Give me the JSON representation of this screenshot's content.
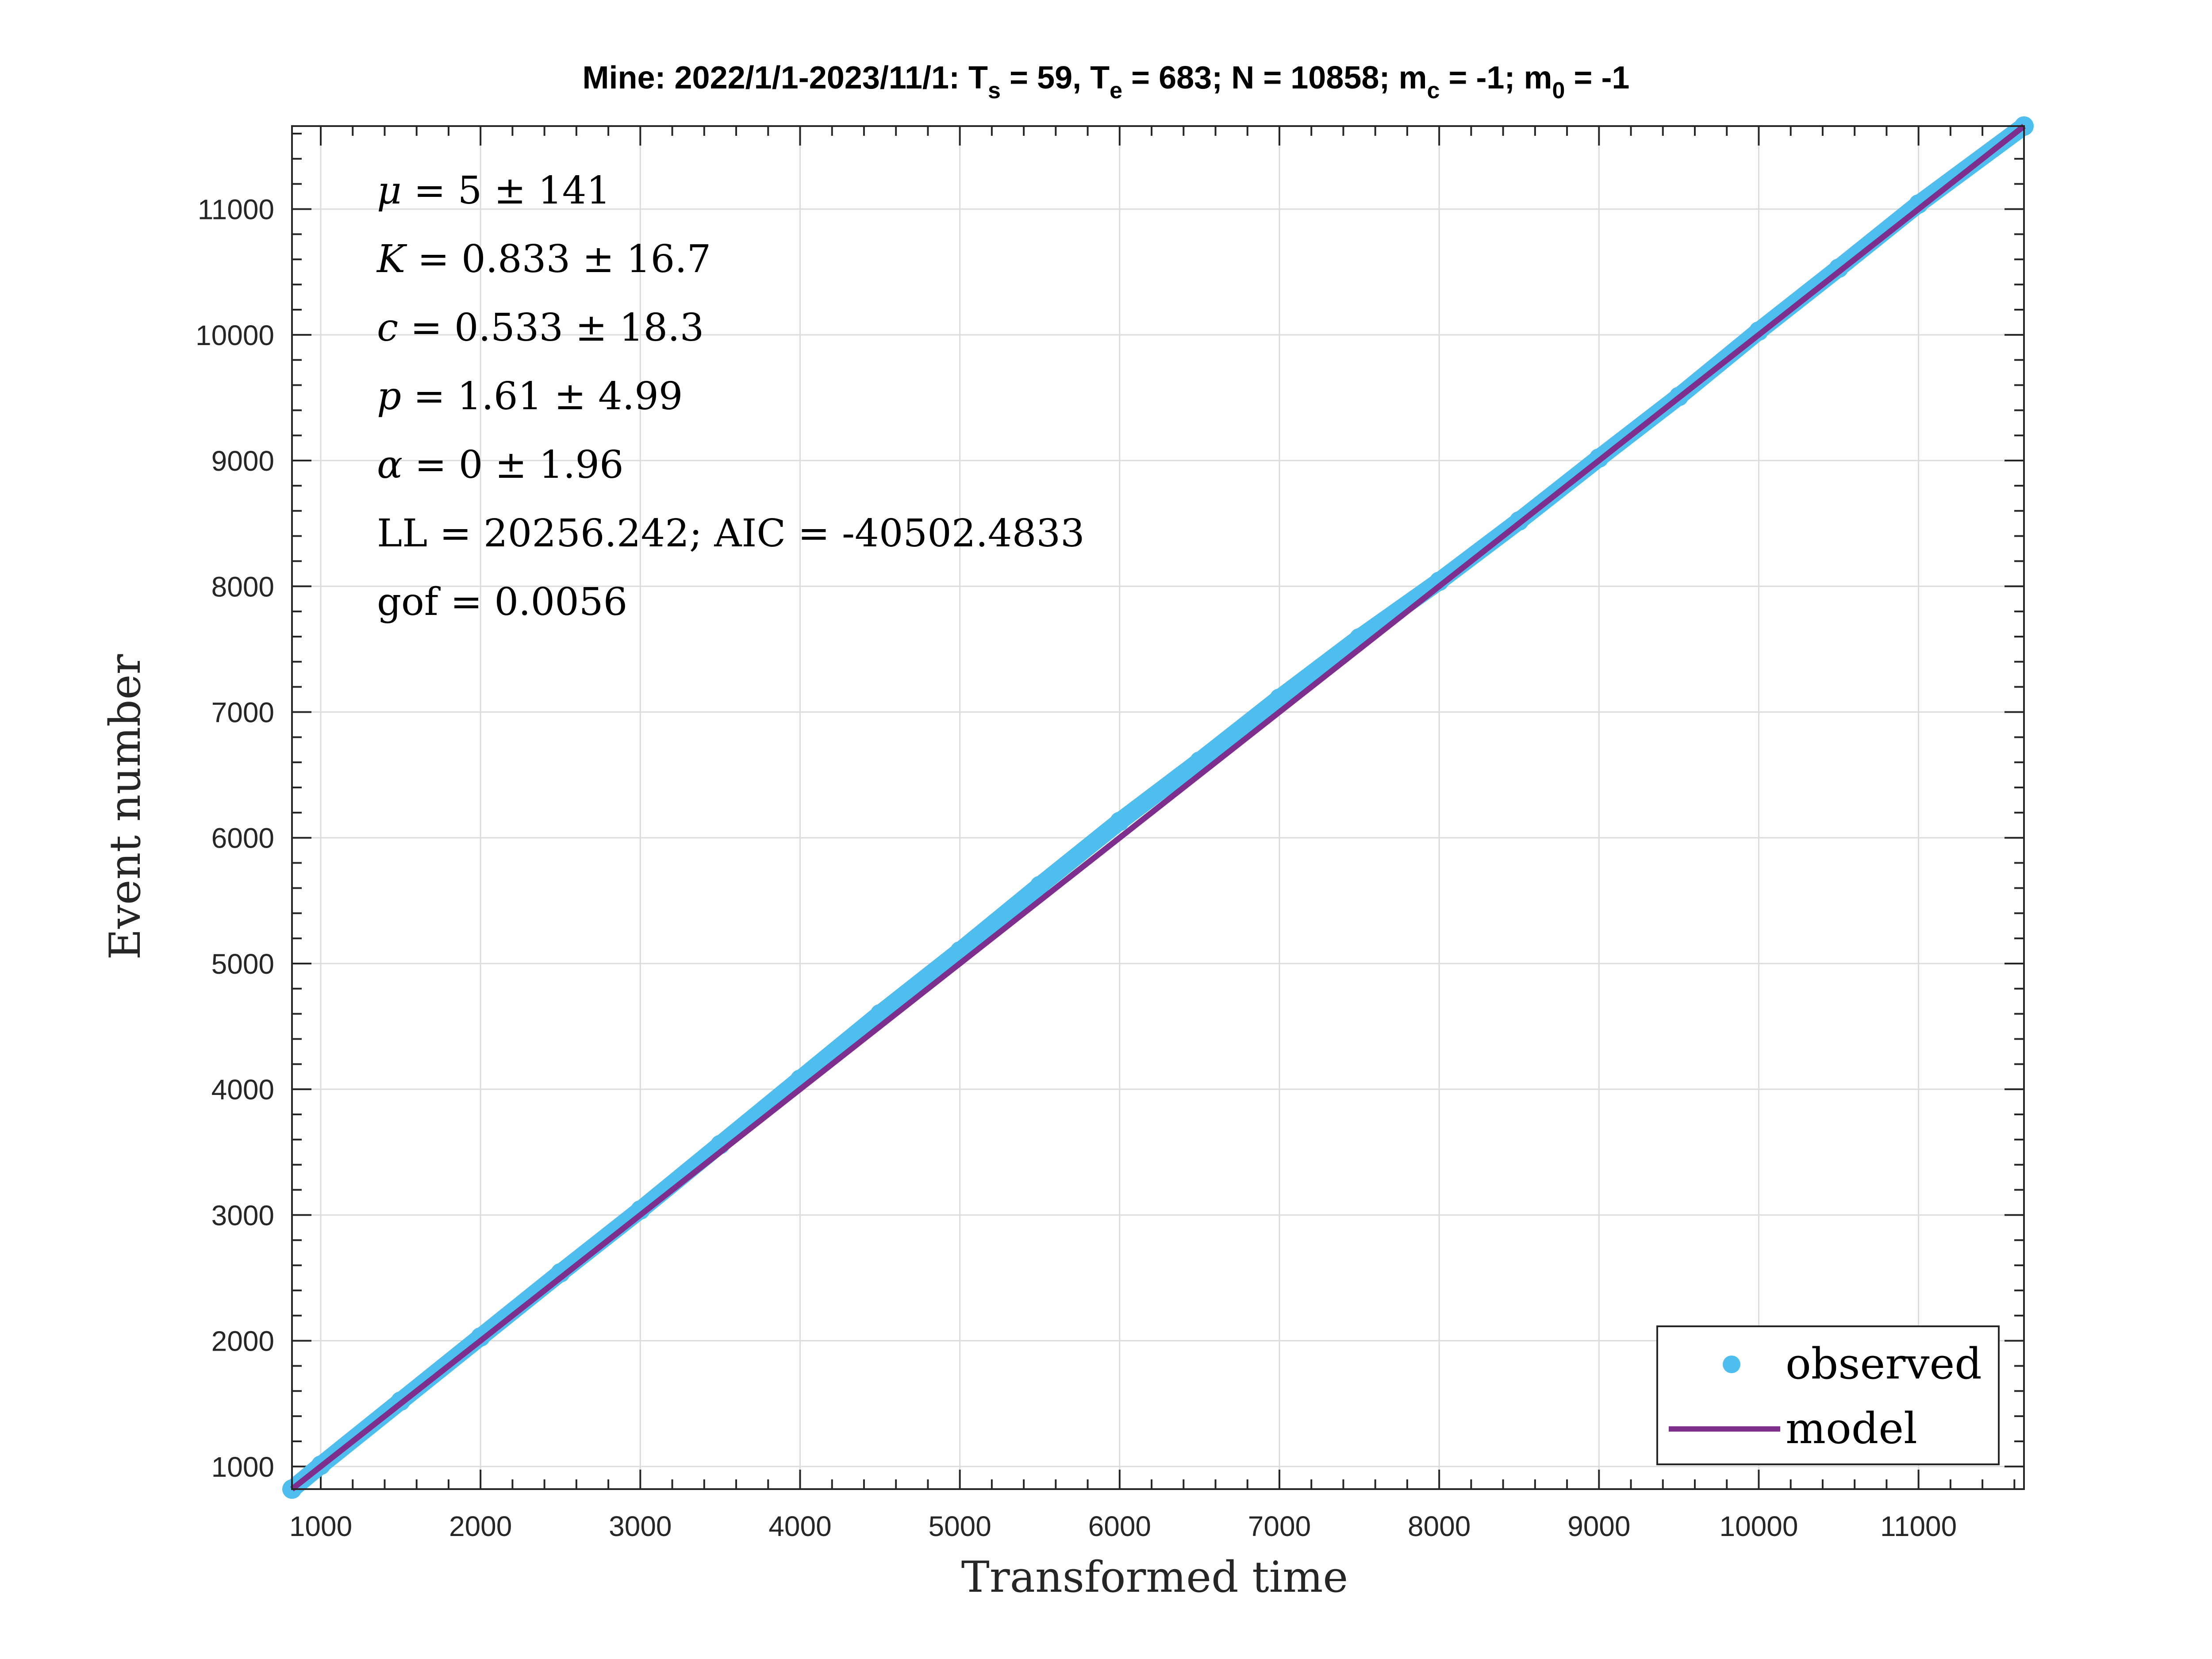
{
  "chart_data": {
    "type": "scatter",
    "title": {
      "prefix": "Mine: 2022/1/1-2023/11/1: T",
      "s_sub": "s",
      "mid1": " = 59, T",
      "e_sub": "e",
      "mid2": " = 683; N = 10858; m",
      "c_sub": "c",
      "mid3": " = -1; m",
      "zero_sub": "0",
      "suffix": " = -1"
    },
    "xlabel": "Transformed time",
    "ylabel": "Event number",
    "xlim": [
      820,
      11660
    ],
    "ylim": [
      820,
      11660
    ],
    "xticks": [
      1000,
      2000,
      3000,
      4000,
      5000,
      6000,
      7000,
      8000,
      9000,
      10000,
      11000
    ],
    "yticks": [
      1000,
      2000,
      3000,
      4000,
      5000,
      6000,
      7000,
      8000,
      9000,
      10000,
      11000
    ],
    "grid": true,
    "legend_position": "bottom-right",
    "series": [
      {
        "name": "observed",
        "kind": "scatter",
        "color": "#4DBEEE",
        "x": [
          820,
          1000,
          1500,
          2000,
          2500,
          3000,
          3500,
          4000,
          4500,
          5000,
          5500,
          6000,
          6500,
          7000,
          7500,
          8000,
          8500,
          9000,
          9500,
          10000,
          10500,
          11000,
          11660
        ],
        "y": [
          820,
          1010,
          1520,
          2030,
          2540,
          3040,
          3560,
          4080,
          4600,
          5100,
          5620,
          6130,
          6610,
          7110,
          7590,
          8040,
          8520,
          9020,
          9510,
          10030,
          10530,
          11040,
          11660
        ]
      },
      {
        "name": "model",
        "kind": "line",
        "color": "#7E2F8E",
        "x": [
          820,
          11660
        ],
        "y": [
          820,
          11660
        ]
      }
    ],
    "annotations": [
      {
        "sym": "μ",
        "rest": " = 5 ± 141"
      },
      {
        "sym": "K",
        "rest": " = 0.833 ± 16.7"
      },
      {
        "sym": "c",
        "rest": " = 0.533 ± 18.3"
      },
      {
        "sym": "p",
        "rest": " = 1.61 ± 4.99"
      },
      {
        "sym": "α",
        "rest": " = 0 ± 1.96"
      },
      {
        "sym": "",
        "rest": "LL = 20256.242; AIC = -40502.4833"
      },
      {
        "sym": "",
        "rest": "gof = 0.0056"
      }
    ]
  }
}
